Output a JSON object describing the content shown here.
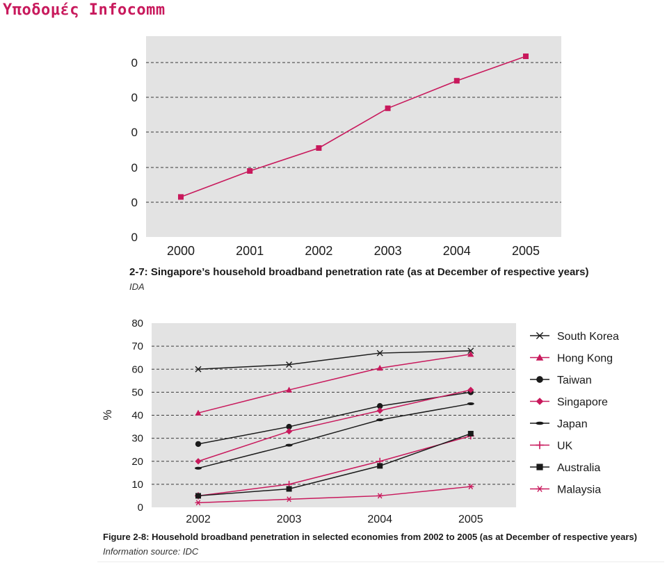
{
  "header": {
    "title": "Υποδομές Infocomm"
  },
  "colors": {
    "magenta": "#c8195c",
    "black": "#1a1a1a",
    "panel": "#e3e3e3",
    "grid": "#3a3a3a"
  },
  "figure_top": {
    "caption": "2-7: Singapore’s household broadband penetration rate (as at December of respective years)",
    "source": "IDA"
  },
  "figure_bottom": {
    "caption": "Figure 2-8: Household broadband penetration in selected economies from 2002 to 2005 (as at December of respective years)",
    "source": "Information source: IDC"
  },
  "chart_data": [
    {
      "type": "line",
      "categories": [
        "2000",
        "2001",
        "2002",
        "2003",
        "2004",
        "2005"
      ],
      "y_tick_labels": [
        "0",
        "0",
        "0",
        "0",
        "0",
        "0"
      ],
      "ylim": [
        0,
        100
      ],
      "series": [
        {
          "marker": "square",
          "color": "#c8195c",
          "values": [
            8,
            25,
            40,
            66,
            84,
            100
          ]
        }
      ],
      "grid": "horizontal dashed"
    },
    {
      "type": "line",
      "categories": [
        "2002",
        "2003",
        "2004",
        "2005"
      ],
      "ylabel": "%",
      "ylim": [
        0,
        80
      ],
      "yticks": [
        0,
        10,
        20,
        30,
        40,
        50,
        60,
        70,
        80
      ],
      "legend": "right",
      "grid": "horizontal dashed",
      "series": [
        {
          "name": "South Korea",
          "marker": "x",
          "color": "#1a1a1a",
          "values": [
            60,
            62,
            67,
            68
          ]
        },
        {
          "name": "Hong Kong",
          "marker": "triangle",
          "color": "#c8195c",
          "values": [
            41,
            51,
            60.5,
            66.5
          ]
        },
        {
          "name": "Taiwan",
          "marker": "circle",
          "color": "#1a1a1a",
          "values": [
            27.5,
            35,
            44,
            50
          ]
        },
        {
          "name": "Singapore",
          "marker": "diamond",
          "color": "#c8195c",
          "values": [
            20,
            33,
            42,
            51
          ]
        },
        {
          "name": "Japan",
          "marker": "dash",
          "color": "#1a1a1a",
          "values": [
            17,
            27,
            38,
            45
          ]
        },
        {
          "name": "UK",
          "marker": "plus",
          "color": "#c8195c",
          "values": [
            5,
            10,
            20,
            31
          ]
        },
        {
          "name": "Australia",
          "marker": "square",
          "color": "#1a1a1a",
          "values": [
            5,
            8,
            18,
            32
          ]
        },
        {
          "name": "Malaysia",
          "marker": "asterisk",
          "color": "#c8195c",
          "values": [
            2,
            3.5,
            5,
            9
          ]
        }
      ]
    }
  ]
}
